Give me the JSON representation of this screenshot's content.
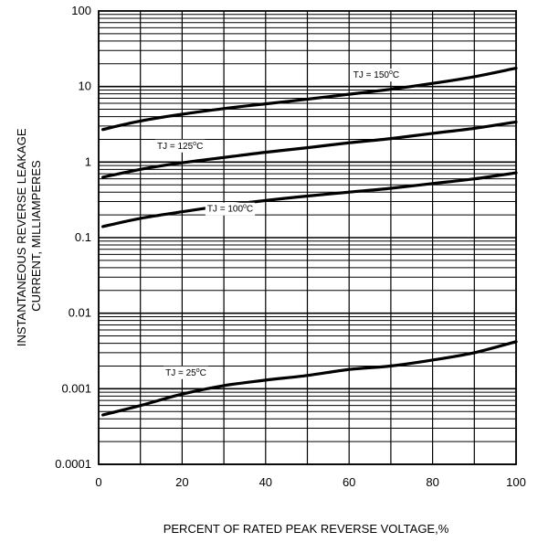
{
  "chart_data": {
    "type": "line",
    "title": "",
    "xlabel": "PERCENT OF RATED PEAK REVERSE VOLTAGE,%",
    "ylabel_lines": [
      "INSTANTANEOUS REVERSE LEAKAGE",
      "CURRENT, MILLIAMPERES"
    ],
    "x_scale": "linear",
    "y_scale": "log",
    "xlim": [
      0,
      100
    ],
    "ylim": [
      0.0001,
      100
    ],
    "x_ticks": [
      0,
      20,
      40,
      60,
      80,
      100
    ],
    "x_tick_labels": [
      "0",
      "20",
      "40",
      "60",
      "80",
      "100"
    ],
    "y_ticks": [
      0.0001,
      0.001,
      0.01,
      0.1,
      1,
      10,
      100
    ],
    "y_tick_labels": [
      "0.0001",
      "0.001",
      "0.01",
      "0.1",
      "1",
      "10",
      "100"
    ],
    "grid": true,
    "legend": "none",
    "series": [
      {
        "name": "TJ = 150°C",
        "x": [
          1,
          10,
          20,
          30,
          40,
          50,
          60,
          70,
          80,
          90,
          100
        ],
        "y": [
          2.7,
          3.5,
          4.3,
          5.1,
          5.9,
          6.8,
          7.9,
          9.2,
          11,
          13.5,
          17.5
        ]
      },
      {
        "name": "TJ = 125°C",
        "x": [
          1,
          10,
          20,
          30,
          40,
          50,
          60,
          70,
          80,
          90,
          100
        ],
        "y": [
          0.63,
          0.8,
          0.98,
          1.15,
          1.35,
          1.55,
          1.8,
          2.05,
          2.4,
          2.8,
          3.4
        ]
      },
      {
        "name": "TJ = 100°C",
        "x": [
          1,
          10,
          20,
          30,
          40,
          50,
          60,
          70,
          80,
          90,
          100
        ],
        "y": [
          0.14,
          0.18,
          0.22,
          0.265,
          0.31,
          0.355,
          0.4,
          0.45,
          0.52,
          0.6,
          0.72
        ]
      },
      {
        "name": "TJ = 25°C",
        "x": [
          1,
          10,
          20,
          30,
          40,
          50,
          60,
          70,
          80,
          90,
          100
        ],
        "y": [
          0.00045,
          0.0006,
          0.00085,
          0.0011,
          0.0013,
          0.0015,
          0.0018,
          0.002,
          0.0024,
          0.003,
          0.0042
        ]
      }
    ],
    "annotations": [
      {
        "series": "TJ = 150°C",
        "prefix": "TJ = 150",
        "sup": "o",
        "suffix": "C",
        "x": 61,
        "y": 13,
        "anchor": "start"
      },
      {
        "series": "TJ = 125°C",
        "prefix": "TJ = 125",
        "sup": "o",
        "suffix": "C",
        "x": 14,
        "y": 1.5,
        "anchor": "start"
      },
      {
        "series": "TJ = 100°C",
        "prefix": "TJ = 100",
        "sup": "o",
        "suffix": "C",
        "x": 26,
        "y": 0.22,
        "anchor": "start"
      },
      {
        "series": "TJ = 25°C",
        "prefix": "TJ = 25",
        "sup": "o",
        "suffix": "C",
        "x": 16,
        "y": 0.0015,
        "anchor": "start"
      }
    ],
    "colors": {
      "line": "#000000",
      "grid": "#000000",
      "background": "#ffffff"
    }
  }
}
